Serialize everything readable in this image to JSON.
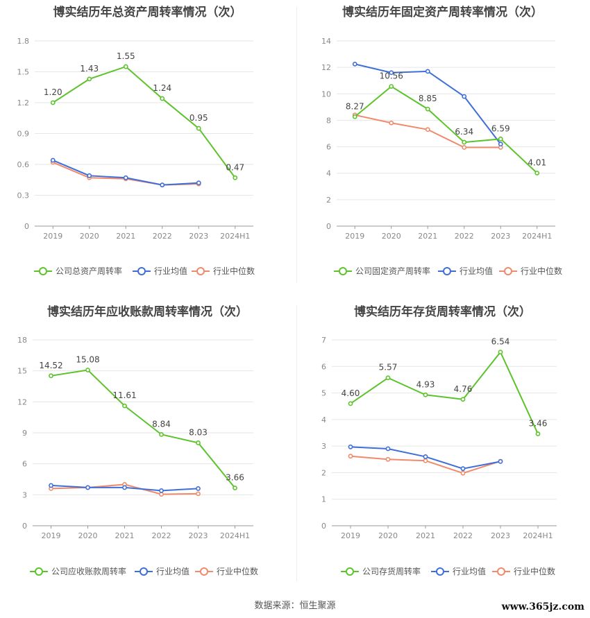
{
  "chart_data": [
    {
      "type": "line",
      "title": "博实结历年总资产周转率情况（次）",
      "categories": [
        "2019",
        "2020",
        "2021",
        "2022",
        "2023",
        "2024H1"
      ],
      "yticks": [
        "0",
        "0.3",
        "0.6",
        "0.9",
        "1.2",
        "1.5",
        "1.8"
      ],
      "ylim": [
        0,
        1.8
      ],
      "series": [
        {
          "name": "公司总资产周转率",
          "color": "#5cc32b",
          "values": [
            1.2,
            1.43,
            1.55,
            1.24,
            0.95,
            0.47
          ],
          "labels": [
            "1.20",
            "1.43",
            "1.55",
            "1.24",
            "0.95",
            "0.47"
          ]
        },
        {
          "name": "行业均值",
          "color": "#3e6fd9",
          "values": [
            0.64,
            0.49,
            0.47,
            0.4,
            0.42,
            null
          ]
        },
        {
          "name": "行业中位数",
          "color": "#f08a6a",
          "values": [
            0.62,
            0.47,
            0.46,
            0.4,
            0.41,
            null
          ]
        }
      ]
    },
    {
      "type": "line",
      "title": "博实结历年固定资产周转率情况（次）",
      "categories": [
        "2019",
        "2020",
        "2021",
        "2022",
        "2023",
        "2024H1"
      ],
      "yticks": [
        "0",
        "2",
        "4",
        "6",
        "8",
        "10",
        "12",
        "14"
      ],
      "ylim": [
        0,
        14
      ],
      "series": [
        {
          "name": "公司固定资产周转率",
          "color": "#5cc32b",
          "values": [
            8.27,
            10.56,
            8.85,
            6.34,
            6.59,
            4.01
          ],
          "labels": [
            "8.27",
            "10.56",
            "8.85",
            "6.34",
            "6.59",
            "4.01"
          ]
        },
        {
          "name": "行业均值",
          "color": "#3e6fd9",
          "values": [
            12.25,
            11.6,
            11.7,
            9.8,
            6.2,
            null
          ]
        },
        {
          "name": "行业中位数",
          "color": "#f08a6a",
          "values": [
            8.4,
            7.8,
            7.3,
            5.95,
            5.95,
            null
          ]
        }
      ]
    },
    {
      "type": "line",
      "title": "博实结历年应收账款周转率情况（次）",
      "categories": [
        "2019",
        "2020",
        "2021",
        "2022",
        "2023",
        "2024H1"
      ],
      "yticks": [
        "0",
        "3",
        "6",
        "9",
        "12",
        "15",
        "18"
      ],
      "ylim": [
        0,
        18
      ],
      "series": [
        {
          "name": "公司应收账款周转率",
          "color": "#5cc32b",
          "values": [
            14.52,
            15.08,
            11.61,
            8.84,
            8.03,
            3.66
          ],
          "labels": [
            "14.52",
            "15.08",
            "11.61",
            "8.84",
            "8.03",
            "3.66"
          ]
        },
        {
          "name": "行业均值",
          "color": "#3e6fd9",
          "values": [
            3.9,
            3.7,
            3.7,
            3.4,
            3.6,
            null
          ]
        },
        {
          "name": "行业中位数",
          "color": "#f08a6a",
          "values": [
            3.6,
            3.7,
            4.0,
            3.05,
            3.1,
            null
          ]
        }
      ]
    },
    {
      "type": "line",
      "title": "博实结历年存货周转率情况（次）",
      "categories": [
        "2019",
        "2020",
        "2021",
        "2022",
        "2023",
        "2024H1"
      ],
      "yticks": [
        "0",
        "1",
        "2",
        "3",
        "4",
        "5",
        "6",
        "7"
      ],
      "ylim": [
        0,
        7
      ],
      "series": [
        {
          "name": "公司存货周转率",
          "color": "#5cc32b",
          "values": [
            4.6,
            5.57,
            4.93,
            4.76,
            6.54,
            3.46
          ],
          "labels": [
            "4.60",
            "5.57",
            "4.93",
            "4.76",
            "6.54",
            "3.46"
          ]
        },
        {
          "name": "行业均值",
          "color": "#3e6fd9",
          "values": [
            2.97,
            2.9,
            2.6,
            2.15,
            2.42,
            null
          ]
        },
        {
          "name": "行业中位数",
          "color": "#f08a6a",
          "values": [
            2.62,
            2.5,
            2.45,
            1.98,
            2.43,
            null
          ]
        }
      ]
    }
  ],
  "footer": {
    "source": "数据来源：恒生聚源",
    "watermark": "www.365jz.com"
  }
}
